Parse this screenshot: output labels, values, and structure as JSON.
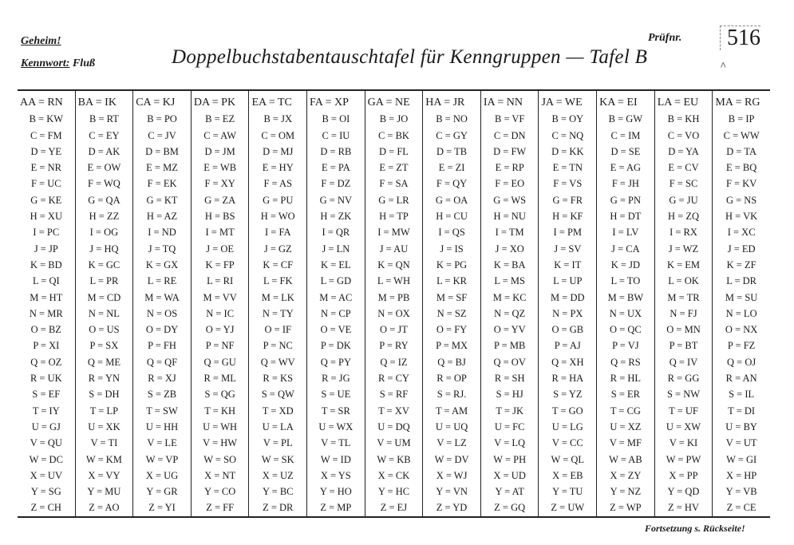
{
  "header": {
    "secret_label": "Geheim!",
    "keyword_label": "Kennwort:",
    "keyword_value": "Fluß",
    "title": "Doppelbuchstabentauschtafel für Kenngruppen — Tafel B",
    "check_label": "Prüfnr.",
    "check_number": "516",
    "caret": "^"
  },
  "table": {
    "row_letters": [
      "B",
      "C",
      "D",
      "E",
      "F",
      "G",
      "H",
      "I",
      "J",
      "K",
      "L",
      "M",
      "N",
      "O",
      "P",
      "Q",
      "R",
      "S",
      "T",
      "U",
      "V",
      "W",
      "X",
      "Y",
      "Z"
    ],
    "columns": [
      {
        "head": "AA",
        "first": "RN",
        "values": [
          "KW",
          "FM",
          "YE",
          "NR",
          "UC",
          "KE",
          "XU",
          "PC",
          "JP",
          "BD",
          "QI",
          "HT",
          "MR",
          "BZ",
          "XI",
          "OZ",
          "UK",
          "EF",
          "IY",
          "GJ",
          "QU",
          "DC",
          "UV",
          "SG",
          "CH"
        ]
      },
      {
        "head": "BA",
        "first": "IK",
        "values": [
          "RT",
          "EY",
          "AK",
          "OW",
          "WQ",
          "QA",
          "ZZ",
          "OG",
          "HQ",
          "GC",
          "PR",
          "CD",
          "NL",
          "US",
          "SX",
          "ME",
          "YN",
          "DH",
          "LP",
          "XK",
          "TI",
          "KM",
          "VY",
          "MU",
          "AO"
        ]
      },
      {
        "head": "CA",
        "first": "KJ",
        "values": [
          "PO",
          "JV",
          "BM",
          "MZ",
          "EK",
          "KT",
          "AZ",
          "ND",
          "TQ",
          "GX",
          "RE",
          "WA",
          "OS",
          "DY",
          "FH",
          "QF",
          "XJ",
          "ZB",
          "SW",
          "HH",
          "LE",
          "VP",
          "UG",
          "GR",
          "YI"
        ]
      },
      {
        "head": "DA",
        "first": "PK",
        "values": [
          "EZ",
          "AW",
          "JM",
          "WB",
          "XY",
          "ZA",
          "BS",
          "MT",
          "OE",
          "FP",
          "RI",
          "VV",
          "IC",
          "YJ",
          "NF",
          "GU",
          "ML",
          "QG",
          "KH",
          "WH",
          "HW",
          "SO",
          "NT",
          "CO",
          "FF"
        ]
      },
      {
        "head": "EA",
        "first": "TC",
        "values": [
          "JX",
          "OM",
          "MJ",
          "HY",
          "AS",
          "PU",
          "WO",
          "FA",
          "GZ",
          "CF",
          "FK",
          "LK",
          "TY",
          "IF",
          "NC",
          "WV",
          "KS",
          "QW",
          "XD",
          "LA",
          "PL",
          "SK",
          "UZ",
          "BC",
          "DR"
        ]
      },
      {
        "head": "FA",
        "first": "XP",
        "values": [
          "OI",
          "IU",
          "RB",
          "PA",
          "DZ",
          "NV",
          "ZK",
          "QR",
          "LN",
          "EL",
          "GD",
          "AC",
          "CP",
          "VE",
          "DK",
          "PY",
          "JG",
          "UE",
          "SR",
          "WX",
          "TL",
          "ID",
          "YS",
          "HO",
          "MP"
        ]
      },
      {
        "head": "GA",
        "first": "NE",
        "values": [
          "JO",
          "BK",
          "FL",
          "ZT",
          "SA",
          "LR",
          "TP",
          "MW",
          "AU",
          "QN",
          "WH",
          "PB",
          "OX",
          "JT",
          "RY",
          "IZ",
          "CY",
          "RF",
          "XV",
          "DQ",
          "UM",
          "KB",
          "CK",
          "HC",
          "EJ"
        ]
      },
      {
        "head": "HA",
        "first": "JR",
        "values": [
          "NO",
          "GY",
          "TB",
          "ZI",
          "QY",
          "OA",
          "CU",
          "QS",
          "IS",
          "PG",
          "KR",
          "SF",
          "SZ",
          "FY",
          "MX",
          "BJ",
          "OP",
          "RJ.",
          "AM",
          "UQ",
          "LZ",
          "DV",
          "WJ",
          "VN",
          "YD"
        ]
      },
      {
        "head": "IA",
        "first": "NN",
        "values": [
          "VF",
          "DN",
          "FW",
          "RP",
          "EO",
          "WS",
          "NU",
          "TM",
          "XO",
          "BA",
          "MS",
          "KC",
          "QZ",
          "YV",
          "MB",
          "OV",
          "SH",
          "HJ",
          "JK",
          "FC",
          "LQ",
          "PH",
          "UD",
          "AT",
          "GQ"
        ]
      },
      {
        "head": "JA",
        "first": "WE",
        "values": [
          "OY",
          "NQ",
          "KK",
          "TN",
          "VS",
          "FR",
          "KF",
          "PM",
          "SV",
          "IT",
          "UP",
          "DD",
          "PX",
          "GB",
          "AJ",
          "XH",
          "HA",
          "YZ",
          "GO",
          "LG",
          "CC",
          "QL",
          "EB",
          "TU",
          "UW"
        ]
      },
      {
        "head": "KA",
        "first": "EI",
        "values": [
          "GW",
          "IM",
          "SE",
          "AG",
          "JH",
          "PN",
          "DT",
          "LV",
          "CA",
          "JD",
          "TO",
          "BW",
          "UX",
          "QC",
          "VJ",
          "RS",
          "HL",
          "ER",
          "CG",
          "XZ",
          "MF",
          "AB",
          "ZY",
          "NZ",
          "WP"
        ]
      },
      {
        "head": "LA",
        "first": "EU",
        "values": [
          "KH",
          "VO",
          "YA",
          "CV",
          "SC",
          "JU",
          "ZQ",
          "RX",
          "WZ",
          "EM",
          "OK",
          "TR",
          "FJ",
          "MN",
          "BT",
          "IV",
          "GG",
          "NW",
          "UF",
          "XW",
          "KI",
          "PW",
          "PP",
          "QD",
          "HV"
        ]
      },
      {
        "head": "MA",
        "first": "RG",
        "values": [
          "IP",
          "WW",
          "TA",
          "BQ",
          "KV",
          "NS",
          "VK",
          "XC",
          "ED",
          "ZF",
          "DR",
          "SU",
          "LO",
          "NX",
          "FZ",
          "OJ",
          "AN",
          "IL",
          "DI",
          "BY",
          "UT",
          "GI",
          "HP",
          "VB",
          "CE"
        ]
      }
    ]
  },
  "footer": {
    "continue_note": "Fortsetzung s. Rückseite!"
  }
}
